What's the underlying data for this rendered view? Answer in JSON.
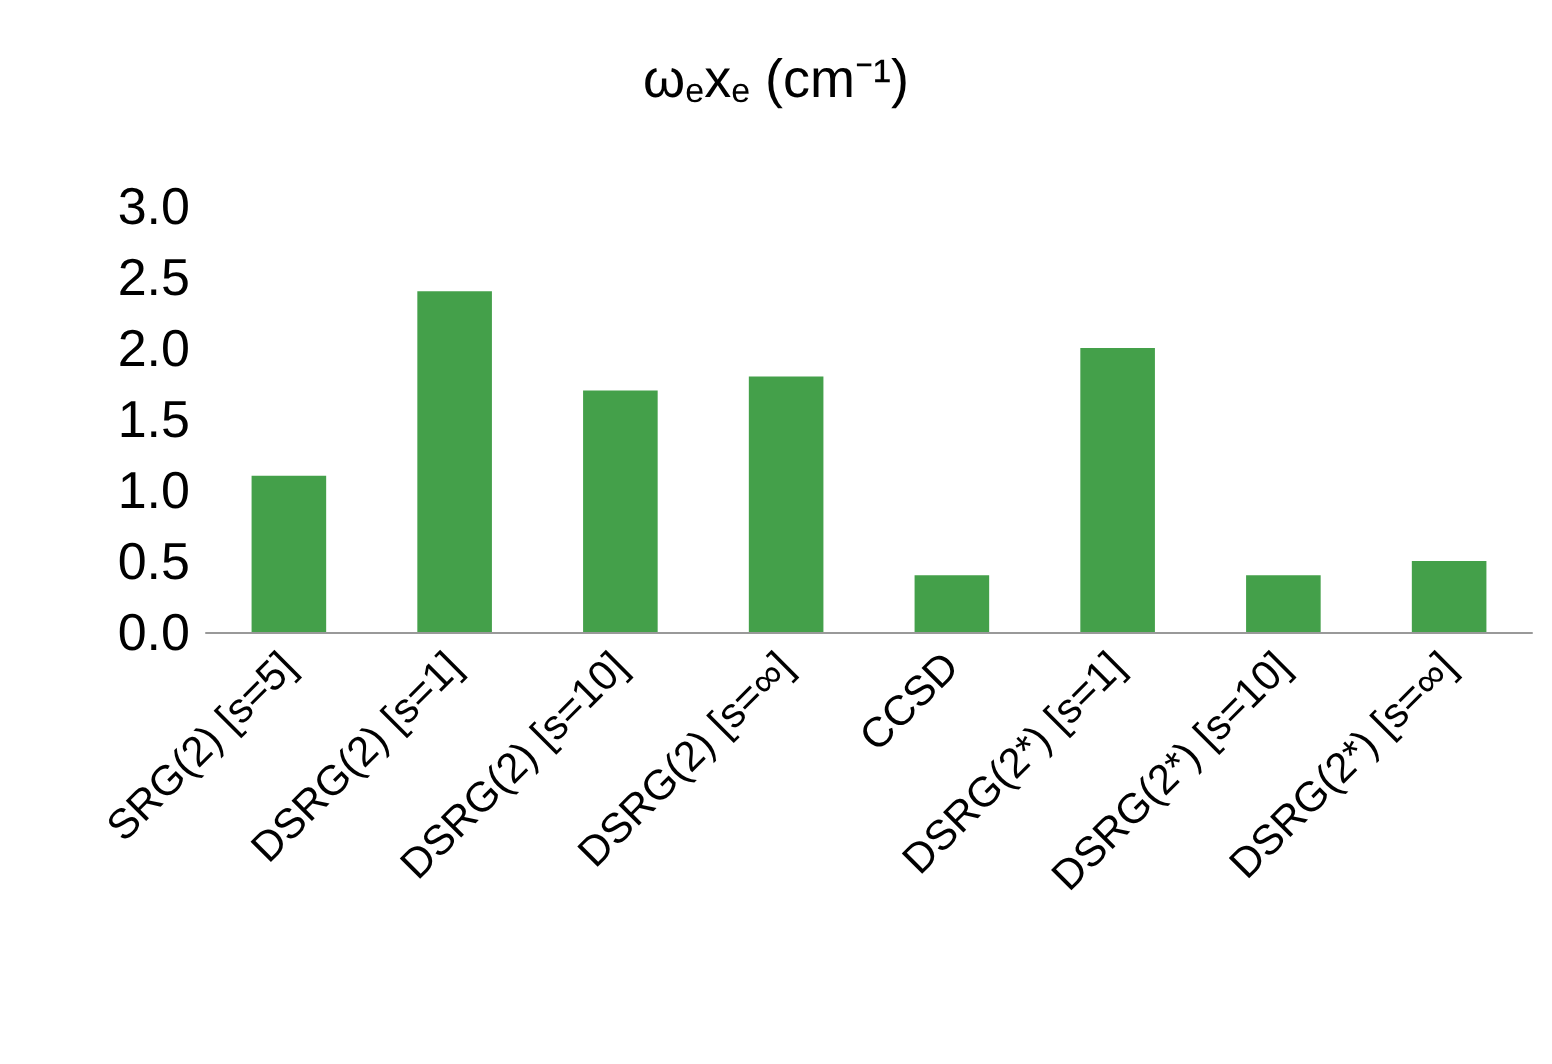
{
  "chart_data": {
    "type": "bar",
    "title": "ω$_{e}$x$_{e}$ (cm⁻¹)",
    "categories": [
      "SRG(2) [s=5]",
      "DSRG(2) [s=1]",
      "DSRG(2) [s=10]",
      "DSRG(2) [s=∞]",
      "CCSD",
      "DSRG(2*) [s=1]",
      "DSRG(2*) [s=10]",
      "DSRG(2*) [s=∞]"
    ],
    "values": [
      1.1,
      2.4,
      1.7,
      1.8,
      0.4,
      2.0,
      0.4,
      0.5
    ],
    "color": "#44a04a",
    "ylim": [
      0,
      3
    ],
    "yticks": [
      {
        "value": 0,
        "label": "0.0"
      },
      {
        "value": 0.5,
        "label": "0.5"
      },
      {
        "value": 1,
        "label": "1.0"
      },
      {
        "value": 1.5,
        "label": "1.5"
      },
      {
        "value": 2,
        "label": "2.0"
      },
      {
        "value": 2.5,
        "label": "2.5"
      },
      {
        "value": 3,
        "label": "3.0"
      }
    ],
    "grid": false
  }
}
